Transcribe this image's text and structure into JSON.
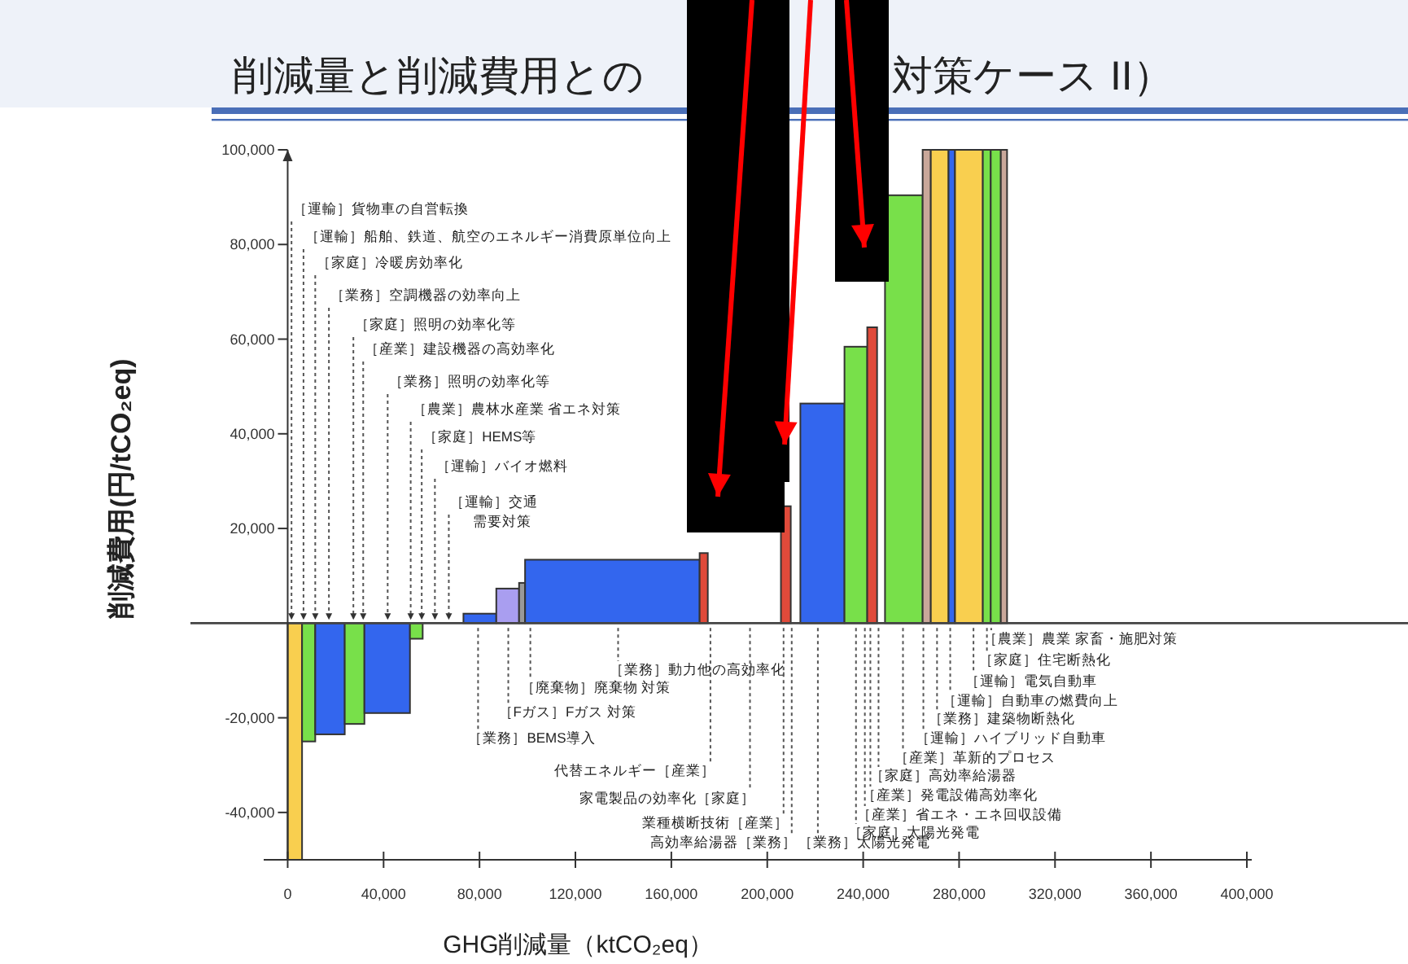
{
  "chart_data": {
    "type": "histogram",
    "title": "削減量と削減費用との",
    "subtitle": "対策ケース II）",
    "xlabel": "GHG削減量（ktCO₂eq）",
    "ylabel": "削減費用(円/tCO₂eq)",
    "bins": [
      0,
      6000,
      11500,
      23800,
      32000,
      51000,
      56300,
      73300,
      87000,
      96500,
      99000,
      171800,
      175200,
      205700,
      209800,
      213800,
      232200,
      241700,
      245800,
      249100,
      264800,
      268200,
      275600,
      278300,
      289900,
      293200,
      297400,
      300000
    ],
    "values": [
      -50000,
      -25000,
      -23500,
      -21300,
      -19000,
      -3300,
      null,
      2000,
      7300,
      8500,
      13400,
      14800,
      null,
      24700,
      null,
      46400,
      58400,
      62500,
      null,
      90400,
      100000,
      100000,
      100000,
      100000,
      100000,
      100000,
      100000
    ],
    "colors": [
      "#f9cf4f",
      "#78e04a",
      "#3366ee",
      "#78e04a",
      "#3366ee",
      "#78e04a",
      null,
      "#3366ee",
      "#a99ef0",
      "#999999",
      "#3366ee",
      "#e04a3a",
      null,
      "#e04a3a",
      null,
      "#3366ee",
      "#78e04a",
      "#e04a3a",
      null,
      "#78e04a",
      "#c9a79a",
      "#f9cf4f",
      "#3366ee",
      "#f9cf4f",
      "#78e04a",
      "#78e04a",
      "#c9a79a"
    ],
    "xlim": [
      -10000,
      400000
    ],
    "ylim": [
      -50000,
      100000
    ],
    "xticks": [
      0,
      {
        "value": 40000,
        "label": "40,000"
      },
      {
        "value": 80000,
        "label": "80,000"
      },
      {
        "value": 120000,
        "label": "120,000"
      },
      {
        "value": 160000,
        "label": "160,000"
      },
      {
        "value": 200000,
        "label": "200,000"
      },
      {
        "value": 240000,
        "label": "240,000"
      },
      {
        "value": 280000,
        "label": "280,000"
      },
      {
        "value": 320000,
        "label": "320,000"
      },
      {
        "value": 360000,
        "label": "360,000"
      },
      {
        "value": 400000,
        "label": "400,000"
      }
    ],
    "yticks": [
      {
        "value": -40000,
        "label": "-40,000"
      },
      {
        "value": -20000,
        "label": "-20,000"
      },
      {
        "value": 20000,
        "label": "20,000"
      },
      {
        "value": 40000,
        "label": "40,000"
      },
      {
        "value": 60000,
        "label": "60,000"
      },
      {
        "value": 80000,
        "label": "80,000"
      },
      {
        "value": 100000,
        "label": "100,000"
      }
    ],
    "ref_lines": [
      {
        "axis": "y",
        "value": 0
      }
    ],
    "grid": false,
    "annotations": [
      {
        "text": "［運輸］貨物車の自営転換",
        "x": 1600,
        "y": 0
      },
      {
        "text": "［運輸］船舶、鉄道、航空のエネルギー消費原単位向上",
        "x": 6600,
        "y": 0
      },
      {
        "text": "［家庭］冷暖房効率化",
        "x": 11500,
        "y": 0
      },
      {
        "text": "［業務］空調機器の効率向上",
        "x": 17200,
        "y": 0
      },
      {
        "text": "［家庭］照明の効率化等",
        "x": 27400,
        "y": 0
      },
      {
        "text": "［産業］建設機器の高効率化",
        "x": 31500,
        "y": 0
      },
      {
        "text": "［業務］照明の効率化等",
        "x": 41700,
        "y": 0
      },
      {
        "text": "［農業］農林水産業 省エネ対策",
        "x": 51300,
        "y": 0
      },
      {
        "text": "［家庭］HEMS等",
        "x": 55900,
        "y": 0
      },
      {
        "text": "［運輸］バイオ燃料",
        "x": 61400,
        "y": 0
      },
      {
        "text": "［運輸］交通需要対策",
        "x": 67200,
        "y": 0
      },
      {
        "text": "［業務］BEMS導入",
        "x": 79400,
        "y": 0
      },
      {
        "text": "［Fガス］Fガス 対策",
        "x": 92000,
        "y": 0
      },
      {
        "text": "［廃棄物］廃棄物 対策",
        "x": 101200,
        "y": 0
      },
      {
        "text": "［業務］動力他の高効率化",
        "x": 137800,
        "y": 0
      },
      {
        "text": "代替エネルギー［産業］",
        "x": 176300,
        "y": 0
      },
      {
        "text": "家電製品の効率化［家庭］",
        "x": 192800,
        "y": 0
      },
      {
        "text": "業種横断技術［産業］",
        "x": 206800,
        "y": 0
      },
      {
        "text": "高効率給湯器［業務］",
        "x": 210200,
        "y": 0
      },
      {
        "text": "［業務］太陽光発電",
        "x": 221100,
        "y": 0
      },
      {
        "text": "［家庭］太陽光発電",
        "x": 237000,
        "y": 0
      },
      {
        "text": "［産業］省エネ・エネ回収設備",
        "x": 240700,
        "y": 0
      },
      {
        "text": "［産業］発電設備高効率化",
        "x": 243000,
        "y": 0
      },
      {
        "text": "［家庭］高効率給湯器",
        "x": 246400,
        "y": 0
      },
      {
        "text": "［産業］革新的プロセス",
        "x": 256600,
        "y": 0
      },
      {
        "text": "［運輸］ハイブリッド自動車",
        "x": 265100,
        "y": 0
      },
      {
        "text": "［業務］建築物断熱化",
        "x": 270800,
        "y": 0
      },
      {
        "text": "［運輸］自動車の燃費向上",
        "x": 276300,
        "y": 0
      },
      {
        "text": "［運輸］電気自動車",
        "x": 286000,
        "y": 0
      },
      {
        "text": "［家庭］住宅断熱化",
        "x": 291600,
        "y": 0
      },
      {
        "text": "［農業］農業 家畜・施肥対策",
        "x": 293400,
        "y": 0
      }
    ]
  }
}
